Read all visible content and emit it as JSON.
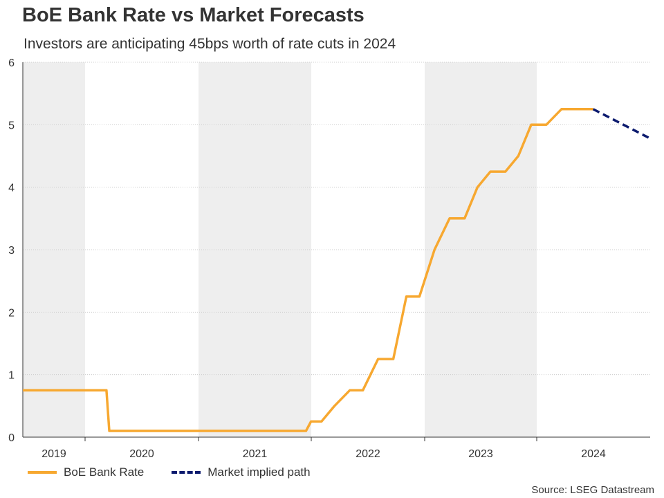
{
  "title": "BoE Bank Rate vs Market Forecasts",
  "subtitle": "Investors are anticipating 45bps worth of rate cuts in 2024",
  "source": "Source: LSEG Datastream",
  "colors": {
    "bank_rate": "#f7a830",
    "market_path": "#0b1a6e",
    "shade": "#eeeeee",
    "grid": "#cccccc"
  },
  "chart_data": {
    "type": "line",
    "x_axis": {
      "type": "date",
      "range": [
        "2019-01-01",
        "2024-07-15"
      ],
      "tick_labels": [
        "2019",
        "2020",
        "2021",
        "2022",
        "2023",
        "2024"
      ]
    },
    "y_axis": {
      "range": [
        0,
        6
      ],
      "tick_labels": [
        "0",
        "1",
        "2",
        "3",
        "4",
        "5",
        "6"
      ]
    },
    "grid": "horizontal dotted",
    "shaded_years": [
      "2019",
      "2021",
      "2023"
    ],
    "legend": {
      "placement": "bottom-left"
    },
    "series": [
      {
        "name": "BoE Bank Rate",
        "style": "solid",
        "color": "#f7a830",
        "points": [
          [
            "2019-01-01",
            0.75
          ],
          [
            "2020-03-10",
            0.75
          ],
          [
            "2020-03-19",
            0.1
          ],
          [
            "2021-12-15",
            0.1
          ],
          [
            "2021-12-31",
            0.25
          ],
          [
            "2022-02-03",
            0.25
          ],
          [
            "2022-03-17",
            0.5
          ],
          [
            "2022-05-05",
            0.75
          ],
          [
            "2022-06-16",
            0.75
          ],
          [
            "2022-08-04",
            1.25
          ],
          [
            "2022-09-22",
            1.25
          ],
          [
            "2022-11-03",
            2.25
          ],
          [
            "2022-12-15",
            2.25
          ],
          [
            "2023-02-02",
            3.0
          ],
          [
            "2023-03-23",
            3.5
          ],
          [
            "2023-05-11",
            3.5
          ],
          [
            "2023-06-22",
            4.0
          ],
          [
            "2023-08-03",
            4.25
          ],
          [
            "2023-09-21",
            4.25
          ],
          [
            "2023-11-02",
            4.5
          ],
          [
            "2023-12-14",
            5.0
          ],
          [
            "2024-02-01",
            5.0
          ],
          [
            "2024-03-21",
            5.25
          ],
          [
            "2024-07-01",
            5.25
          ]
        ]
      },
      {
        "name": "Market implied path",
        "style": "dashed",
        "color": "#0b1a6e",
        "points": [
          [
            "2024-07-01",
            5.25
          ],
          [
            "2025-12-31",
            4.78
          ]
        ]
      }
    ]
  }
}
